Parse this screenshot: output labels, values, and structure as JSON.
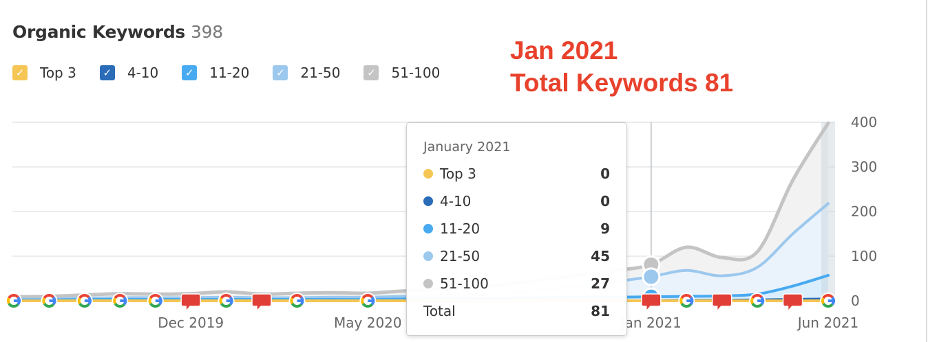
{
  "header": {
    "title": "Organic Keywords",
    "count": "398"
  },
  "legend": [
    {
      "label": "Top 3",
      "color": "#f6c654",
      "checked": true
    },
    {
      "label": "4-10",
      "color": "#2b6cb8",
      "checked": true
    },
    {
      "label": "11-20",
      "color": "#48aaf0",
      "checked": true
    },
    {
      "label": "21-50",
      "color": "#9cc8ee",
      "checked": true
    },
    {
      "label": "51-100",
      "color": "#c4c4c4",
      "checked": true
    }
  ],
  "annotation": {
    "line1": "Jan 2021",
    "line2": "Total Keywords 81",
    "color": "#e8412c"
  },
  "tooltip": {
    "month": "January 2021",
    "rows": [
      {
        "label": "Top 3",
        "value": "0",
        "color": "#f6c654"
      },
      {
        "label": "4-10",
        "value": "0",
        "color": "#2b6cb8"
      },
      {
        "label": "11-20",
        "value": "9",
        "color": "#48aaf0"
      },
      {
        "label": "21-50",
        "value": "45",
        "color": "#9cc8ee"
      },
      {
        "label": "51-100",
        "value": "27",
        "color": "#c4c4c4"
      }
    ],
    "total_label": "Total",
    "total_value": "81"
  },
  "chart_data": {
    "type": "area",
    "stacked": true,
    "x": [
      "Jul 2019",
      "Aug 2019",
      "Sep 2019",
      "Oct 2019",
      "Nov 2019",
      "Dec 2019",
      "Jan 2020",
      "Feb 2020",
      "Mar 2020",
      "Apr 2020",
      "May 2020",
      "Jun 2020",
      "Jul 2020",
      "Aug 2020",
      "Sep 2020",
      "Oct 2020",
      "Nov 2020",
      "Dec 2020",
      "Jan 2021",
      "Feb 2021",
      "Mar 2021",
      "Apr 2021",
      "May 2021",
      "Jun 2021"
    ],
    "x_tick_labels": [
      "Dec 2019",
      "May 2020",
      "Jan 2021",
      "Jun 2021"
    ],
    "y_ticks": [
      "0",
      "100",
      "200",
      "300",
      "400"
    ],
    "ylim": [
      0,
      400
    ],
    "y_axis_side": "right",
    "grid": true,
    "highlighted": "Jan 2021",
    "series": [
      {
        "name": "Top 3",
        "color": "#f6c654",
        "values": [
          0,
          0,
          0,
          0,
          0,
          0,
          0,
          0,
          0,
          0,
          0,
          0,
          0,
          0,
          0,
          0,
          0,
          0,
          0,
          0,
          0,
          0,
          0,
          0
        ]
      },
      {
        "name": "4-10",
        "color": "#2b6cb8",
        "values": [
          0,
          0,
          0,
          0,
          0,
          0,
          0,
          0,
          0,
          0,
          0,
          0,
          0,
          0,
          0,
          0,
          0,
          0,
          0,
          1,
          1,
          2,
          3,
          4
        ]
      },
      {
        "name": "11-20",
        "color": "#48aaf0",
        "values": [
          2,
          2,
          3,
          3,
          3,
          3,
          3,
          3,
          3,
          3,
          3,
          4,
          5,
          5,
          6,
          7,
          8,
          8,
          9,
          9,
          10,
          13,
          30,
          53
        ]
      },
      {
        "name": "21-50",
        "color": "#9cc8ee",
        "values": [
          2,
          2,
          3,
          4,
          4,
          4,
          5,
          4,
          4,
          5,
          5,
          6,
          7,
          9,
          12,
          18,
          25,
          35,
          45,
          58,
          45,
          60,
          117,
          161
        ]
      },
      {
        "name": "51-100",
        "color": "#c4c4c4",
        "values": [
          5,
          6,
          7,
          9,
          8,
          9,
          12,
          8,
          10,
          10,
          9,
          12,
          13,
          16,
          20,
          23,
          25,
          25,
          27,
          52,
          41,
          35,
          120,
          180
        ]
      }
    ],
    "markers": [
      {
        "month": "Jul 2019",
        "type": "google-update"
      },
      {
        "month": "Aug 2019",
        "type": "google-update"
      },
      {
        "month": "Sep 2019",
        "type": "google-update"
      },
      {
        "month": "Oct 2019",
        "type": "google-update"
      },
      {
        "month": "Nov 2019",
        "type": "google-update"
      },
      {
        "month": "Dec 2019",
        "type": "note"
      },
      {
        "month": "Jan 2020",
        "type": "google-update"
      },
      {
        "month": "Feb 2020",
        "type": "note"
      },
      {
        "month": "Mar 2020",
        "type": "google-update"
      },
      {
        "month": "May 2020",
        "type": "google-update"
      },
      {
        "month": "Jan 2021",
        "type": "note"
      },
      {
        "month": "Feb 2021",
        "type": "google-update"
      },
      {
        "month": "Mar 2021",
        "type": "note"
      },
      {
        "month": "Apr 2021",
        "type": "google-update"
      },
      {
        "month": "May 2021",
        "type": "note"
      },
      {
        "month": "Jun 2021",
        "type": "google-update"
      }
    ]
  }
}
